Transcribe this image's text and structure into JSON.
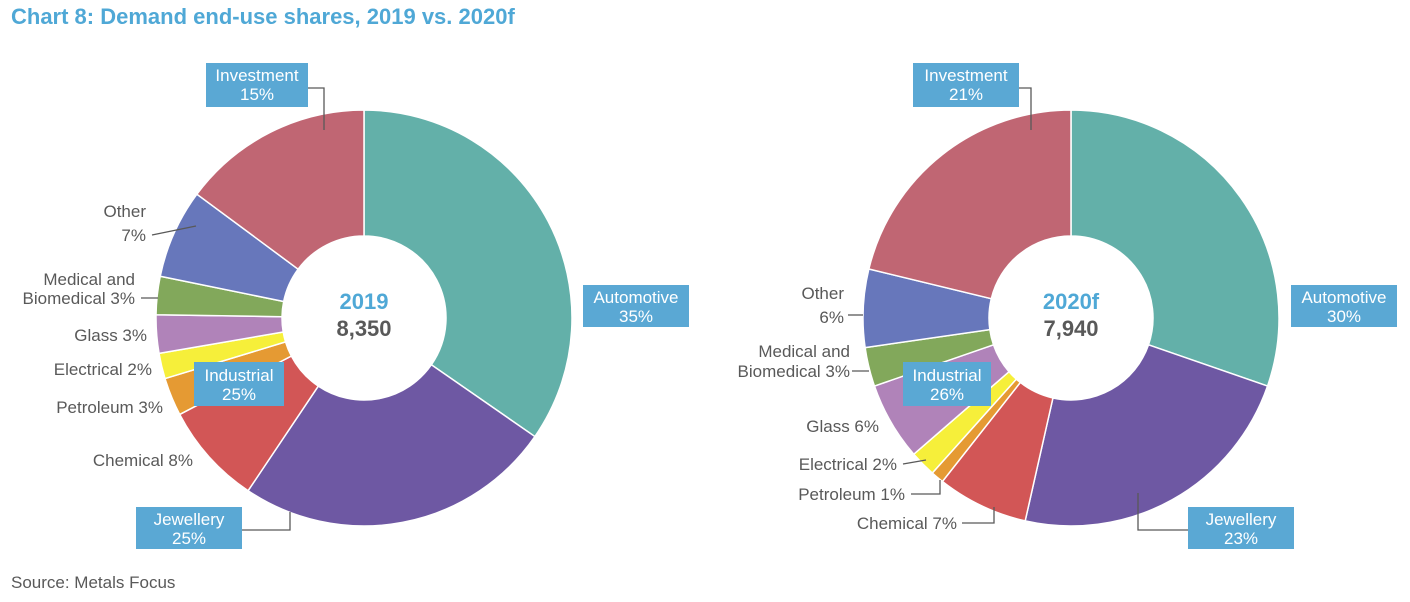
{
  "title": "Chart 8: Demand end-use shares, 2019 vs. 2020f",
  "source": "Source: Metals Focus",
  "chart_data": [
    {
      "type": "pie",
      "center_label": "2019",
      "center_value": "8,350",
      "slices": [
        {
          "name": "Automotive",
          "value": 35,
          "label_line1": "Automotive",
          "label_line2": "35%",
          "color": "#63b0a9",
          "boxed": true
        },
        {
          "name": "Jewellery",
          "value": 25,
          "label_line1": "Jewellery",
          "label_line2": "25%",
          "color": "#6e58a3",
          "boxed": true
        },
        {
          "name": "Chemical",
          "value": 8,
          "label_line1": "Chemical 8%",
          "label_line2": "",
          "color": "#d25656",
          "boxed": false
        },
        {
          "name": "Petroleum",
          "value": 3,
          "label_line1": "Petroleum 3%",
          "label_line2": "",
          "color": "#e59a33",
          "boxed": false
        },
        {
          "name": "Electrical",
          "value": 2,
          "label_line1": "Electrical 2%",
          "label_line2": "",
          "color": "#f6ef3a",
          "boxed": false
        },
        {
          "name": "Glass",
          "value": 3,
          "label_line1": "Glass 3%",
          "label_line2": "",
          "color": "#b083b9",
          "boxed": false
        },
        {
          "name": "Medical and Biomedical",
          "value": 3,
          "label_line1": "Medical and",
          "label_line2": "Biomedical 3%",
          "color": "#82a85b",
          "boxed": false
        },
        {
          "name": "Other",
          "value": 7,
          "label_line1": "Other",
          "label_line2": "7%",
          "color": "#6777bb",
          "boxed": false
        },
        {
          "name": "Investment",
          "value": 15,
          "label_line1": "Investment",
          "label_line2": "15%",
          "color": "#c06673",
          "boxed": true
        }
      ],
      "group_label": {
        "line1": "Industrial",
        "line2": "25%"
      }
    },
    {
      "type": "pie",
      "center_label": "2020f",
      "center_value": "7,940",
      "slices": [
        {
          "name": "Automotive",
          "value": 30,
          "label_line1": "Automotive",
          "label_line2": "30%",
          "color": "#63b0a9",
          "boxed": true
        },
        {
          "name": "Jewellery",
          "value": 23,
          "label_line1": "Jewellery",
          "label_line2": "23%",
          "color": "#6e58a3",
          "boxed": true
        },
        {
          "name": "Chemical",
          "value": 7,
          "label_line1": "Chemical 7%",
          "label_line2": "",
          "color": "#d25656",
          "boxed": false
        },
        {
          "name": "Petroleum",
          "value": 1,
          "label_line1": "Petroleum 1%",
          "label_line2": "",
          "color": "#e59a33",
          "boxed": false
        },
        {
          "name": "Electrical",
          "value": 2,
          "label_line1": "Electrical 2%",
          "label_line2": "",
          "color": "#f6ef3a",
          "boxed": false
        },
        {
          "name": "Glass",
          "value": 6,
          "label_line1": "Glass 6%",
          "label_line2": "",
          "color": "#b083b9",
          "boxed": false
        },
        {
          "name": "Medical and Biomedical",
          "value": 3,
          "label_line1": "Medical and",
          "label_line2": "Biomedical 3%",
          "color": "#82a85b",
          "boxed": false
        },
        {
          "name": "Other",
          "value": 6,
          "label_line1": "Other",
          "label_line2": "6%",
          "color": "#6777bb",
          "boxed": false
        },
        {
          "name": "Investment",
          "value": 21,
          "label_line1": "Investment",
          "label_line2": "21%",
          "color": "#c06673",
          "boxed": true
        }
      ],
      "group_label": {
        "line1": "Industrial",
        "line2": "26%"
      }
    }
  ]
}
